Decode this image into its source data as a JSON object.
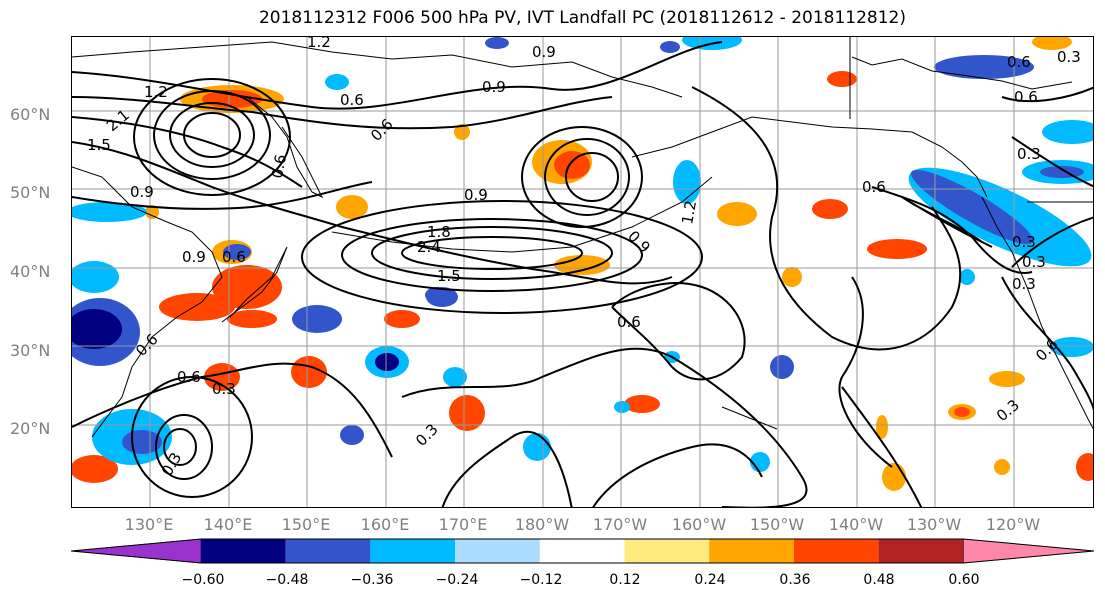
{
  "title": "2018112312 F006 500 hPa PV, IVT Landfall PC (2018112612 - 2018112812)",
  "lat_labels": [
    "60°N",
    "50°N",
    "40°N",
    "30°N",
    "20°N"
  ],
  "lon_labels": [
    "130°E",
    "140°E",
    "150°E",
    "160°E",
    "170°E",
    "180°W",
    "170°W",
    "160°W",
    "150°W",
    "140°W",
    "130°W",
    "120°W"
  ],
  "contour_labels": [
    "1.2",
    "1.2",
    "2.1",
    "1.5",
    "0.9",
    "0.6",
    "0.9",
    "0.9",
    "0.6",
    "0.3",
    "0.6",
    "0.3",
    "0.6",
    "0.3",
    "0.3",
    "0.6",
    "0.3",
    "2.4",
    "1.8",
    "1.5",
    "0.9",
    "0.6",
    "0.9",
    "0.6",
    "1.2",
    "0.3",
    "0.6",
    "0.9",
    "0.6",
    "0.3",
    "0.6",
    "0.3",
    "0.6",
    "0.3"
  ],
  "colorbar": {
    "ticks": [
      "−0.60",
      "−0.48",
      "−0.36",
      "−0.24",
      "−0.12",
      "0.12",
      "0.24",
      "0.36",
      "0.48",
      "0.60"
    ],
    "colors": [
      "#9933cc",
      "#000080",
      "#3355cc",
      "#00bbff",
      "#aaddff",
      "#ffffff",
      "#ffea80",
      "#ffa500",
      "#ff4500",
      "#b22222",
      "#ff88aa"
    ]
  }
}
